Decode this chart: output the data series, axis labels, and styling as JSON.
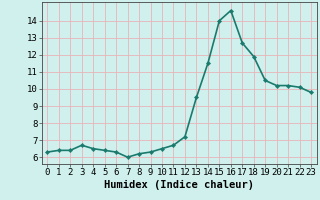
{
  "x": [
    0,
    1,
    2,
    3,
    4,
    5,
    6,
    7,
    8,
    9,
    10,
    11,
    12,
    13,
    14,
    15,
    16,
    17,
    18,
    19,
    20,
    21,
    22,
    23
  ],
  "y": [
    6.3,
    6.4,
    6.4,
    6.7,
    6.5,
    6.4,
    6.3,
    6.0,
    6.2,
    6.3,
    6.5,
    6.7,
    7.2,
    9.5,
    11.5,
    14.0,
    14.6,
    12.7,
    11.9,
    10.5,
    10.2,
    10.2,
    10.1,
    9.8
  ],
  "line_color": "#1a7a6e",
  "marker": "D",
  "marker_size": 2.2,
  "bg_color": "#cff0ec",
  "grid_color": "#e8b4b8",
  "xlabel": "Humidex (Indice chaleur)",
  "xlabel_fontsize": 7.5,
  "ylabel_ticks": [
    6,
    7,
    8,
    9,
    10,
    11,
    12,
    13,
    14
  ],
  "xtick_labels": [
    "0",
    "1",
    "2",
    "3",
    "4",
    "5",
    "6",
    "7",
    "8",
    "9",
    "10",
    "11",
    "12",
    "13",
    "14",
    "15",
    "16",
    "17",
    "18",
    "19",
    "20",
    "21",
    "22",
    "23"
  ],
  "ylim": [
    5.6,
    15.1
  ],
  "xlim": [
    -0.5,
    23.5
  ],
  "tick_fontsize": 6.5,
  "linewidth": 1.2
}
